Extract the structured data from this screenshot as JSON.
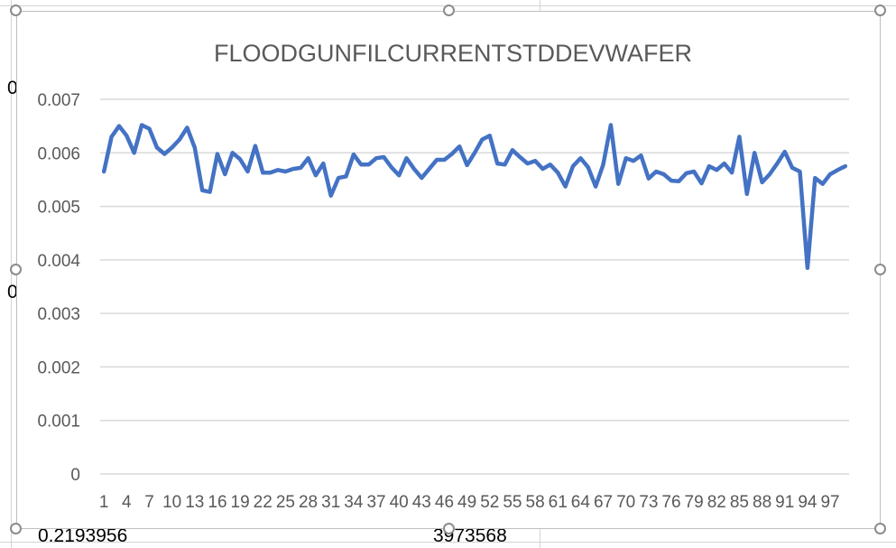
{
  "sheet": {
    "cell_left_partial": "0.2193956",
    "cell_mid_partial": "3973568",
    "row_fragment_1": "0",
    "row_fragment_2": "0"
  },
  "colors": {
    "series": "#4472C4",
    "gridline": "#d9d9d9",
    "axis_text": "#595959",
    "title_text": "#595959"
  },
  "chart_data": {
    "type": "line",
    "title": "FLOODGUNFILCURRENTSTDDEVWAFER",
    "xlabel": "",
    "ylabel": "",
    "ylim": [
      0,
      0.007
    ],
    "yticks": [
      "0",
      "0.001",
      "0.002",
      "0.003",
      "0.004",
      "0.005",
      "0.006",
      "0.007"
    ],
    "ytick_values": [
      0,
      0.001,
      0.002,
      0.003,
      0.004,
      0.005,
      0.006,
      0.007
    ],
    "xtick_labels": [
      "1",
      "4",
      "7",
      "10",
      "13",
      "16",
      "19",
      "22",
      "25",
      "28",
      "31",
      "34",
      "37",
      "40",
      "43",
      "46",
      "49",
      "52",
      "55",
      "58",
      "61",
      "64",
      "67",
      "70",
      "73",
      "76",
      "79",
      "82",
      "85",
      "88",
      "91",
      "94",
      "97"
    ],
    "grid": true,
    "legend": "none",
    "x": [
      1,
      2,
      3,
      4,
      5,
      6,
      7,
      8,
      9,
      10,
      11,
      12,
      13,
      14,
      15,
      16,
      17,
      18,
      19,
      20,
      21,
      22,
      23,
      24,
      25,
      26,
      27,
      28,
      29,
      30,
      31,
      32,
      33,
      34,
      35,
      36,
      37,
      38,
      39,
      40,
      41,
      42,
      43,
      44,
      45,
      46,
      47,
      48,
      49,
      50,
      51,
      52,
      53,
      54,
      55,
      56,
      57,
      58,
      59,
      60,
      61,
      62,
      63,
      64,
      65,
      66,
      67,
      68,
      69,
      70,
      71,
      72,
      73,
      74,
      75,
      76,
      77,
      78,
      79,
      80,
      81,
      82,
      83,
      84,
      85,
      86,
      87,
      88,
      89,
      90,
      91,
      92,
      93,
      94,
      95,
      96,
      97,
      98,
      99
    ],
    "series": [
      {
        "values": [
          0.00565,
          0.0063,
          0.0065,
          0.00632,
          0.006,
          0.00652,
          0.00645,
          0.0061,
          0.00598,
          0.0061,
          0.00625,
          0.00647,
          0.0061,
          0.0053,
          0.00527,
          0.00598,
          0.0056,
          0.006,
          0.00588,
          0.00565,
          0.00613,
          0.00563,
          0.00563,
          0.00568,
          0.00565,
          0.0057,
          0.00572,
          0.0059,
          0.00558,
          0.0058,
          0.0052,
          0.00553,
          0.00556,
          0.00597,
          0.00578,
          0.00578,
          0.0059,
          0.00592,
          0.00573,
          0.00558,
          0.0059,
          0.0057,
          0.00553,
          0.0057,
          0.00587,
          0.00587,
          0.00598,
          0.00612,
          0.00577,
          0.006,
          0.00625,
          0.00632,
          0.0058,
          0.00578,
          0.00605,
          0.00592,
          0.0058,
          0.00585,
          0.0057,
          0.00578,
          0.00563,
          0.00537,
          0.00575,
          0.0059,
          0.00573,
          0.00537,
          0.00578,
          0.00652,
          0.00542,
          0.0059,
          0.00585,
          0.00595,
          0.00552,
          0.00565,
          0.0056,
          0.00548,
          0.00547,
          0.00562,
          0.00565,
          0.00543,
          0.00575,
          0.00568,
          0.0058,
          0.00563,
          0.0063,
          0.00523,
          0.006,
          0.00545,
          0.0056,
          0.0058,
          0.00602,
          0.00572,
          0.00565,
          0.00385,
          0.00553,
          0.00542,
          0.0056,
          0.00568,
          0.00575
        ]
      }
    ]
  }
}
